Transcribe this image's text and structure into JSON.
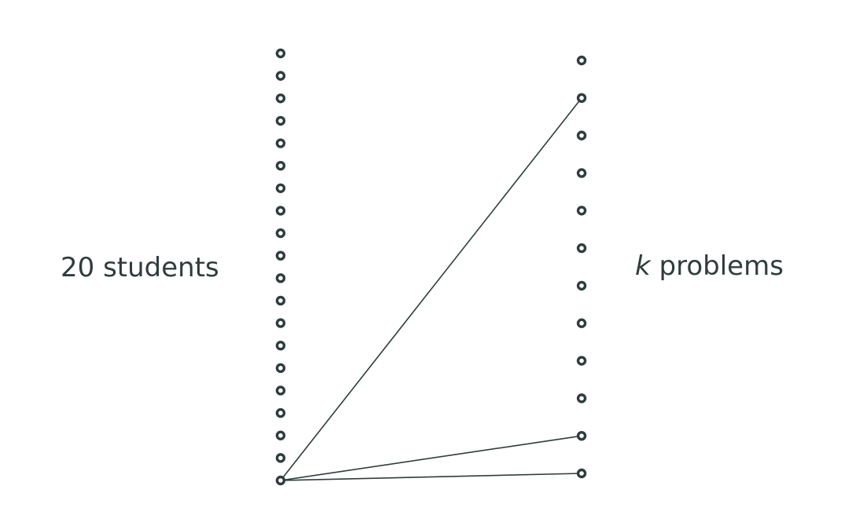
{
  "labels": {
    "left_count": "20",
    "left_word": "students",
    "right_var": "k",
    "right_word": "problems"
  },
  "graph": {
    "left_nodes": 20,
    "right_nodes": 12,
    "edges": [
      {
        "from_left": 20,
        "to_right": 2
      },
      {
        "from_left": 20,
        "to_right": 11
      },
      {
        "from_left": 20,
        "to_right": 12
      }
    ]
  },
  "colors": {
    "ink": "#2f3d3c",
    "background": "#ffffff"
  }
}
